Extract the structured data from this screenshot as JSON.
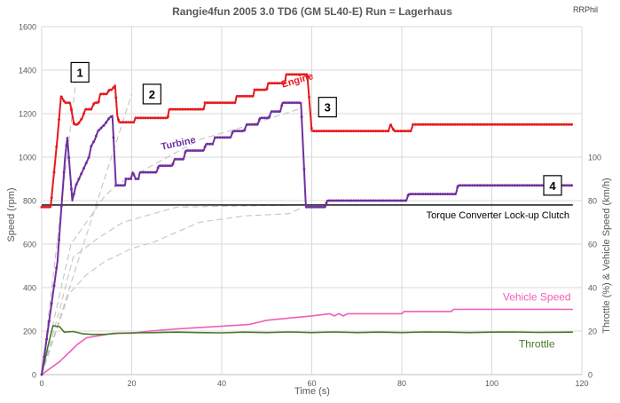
{
  "chart_data": {
    "type": "line",
    "title": "Rangie4fun   2005 3.0 TD6  (GM 5L40-E)   Run = Lagerhaus",
    "credit": "RRPhil",
    "xlabel": "Time (s)",
    "ylabel": "Speed (rpm)",
    "y2label": "Throttle (%) & Vehicle Speed (km/h)",
    "xlim": [
      0,
      120
    ],
    "ylim": [
      0,
      1600
    ],
    "y2lim": [
      0,
      160
    ],
    "x_ticks": [
      0,
      20,
      40,
      60,
      80,
      100,
      120
    ],
    "y_ticks": [
      0,
      200,
      400,
      600,
      800,
      1000,
      1200,
      1400,
      1600
    ],
    "y2_ticks": [
      0,
      20,
      40,
      60,
      80,
      100
    ],
    "grid": true,
    "series": [
      {
        "name": "Engine",
        "color": "#e8191c",
        "axis": "left",
        "marker": true,
        "points": [
          [
            0,
            770
          ],
          [
            2,
            770
          ],
          [
            3.5,
            1090
          ],
          [
            4.3,
            1280
          ],
          [
            5.2,
            1250
          ],
          [
            6.3,
            1250
          ],
          [
            7.2,
            1150
          ],
          [
            8,
            1150
          ],
          [
            9,
            1180
          ],
          [
            9.7,
            1220
          ],
          [
            11,
            1220
          ],
          [
            11.7,
            1250
          ],
          [
            12.6,
            1250
          ],
          [
            13,
            1290
          ],
          [
            14.5,
            1290
          ],
          [
            15,
            1310
          ],
          [
            15.6,
            1310
          ],
          [
            16.3,
            1330
          ],
          [
            16.8,
            1190
          ],
          [
            17.2,
            1160
          ],
          [
            20.5,
            1160
          ],
          [
            20.8,
            1180
          ],
          [
            28,
            1180
          ],
          [
            28.3,
            1220
          ],
          [
            36,
            1220
          ],
          [
            36.3,
            1250
          ],
          [
            43,
            1250
          ],
          [
            43.3,
            1280
          ],
          [
            47,
            1280
          ],
          [
            47.3,
            1310
          ],
          [
            50,
            1310
          ],
          [
            50.3,
            1340
          ],
          [
            54,
            1340
          ],
          [
            54.3,
            1380
          ],
          [
            59,
            1380
          ],
          [
            60,
            1120
          ],
          [
            77,
            1120
          ],
          [
            77.5,
            1150
          ],
          [
            78.3,
            1120
          ],
          [
            82,
            1120
          ],
          [
            82.5,
            1150
          ],
          [
            118,
            1150
          ]
        ]
      },
      {
        "name": "Turbine",
        "color": "#7030a0",
        "axis": "left",
        "marker": true,
        "points": [
          [
            0,
            0
          ],
          [
            3.5,
            520
          ],
          [
            5.2,
            1000
          ],
          [
            5.7,
            1090
          ],
          [
            6.8,
            800
          ],
          [
            7.6,
            870
          ],
          [
            10.5,
            1000
          ],
          [
            11,
            1050
          ],
          [
            11.8,
            1080
          ],
          [
            12.5,
            1120
          ],
          [
            13,
            1130
          ],
          [
            14,
            1150
          ],
          [
            15,
            1180
          ],
          [
            15.7,
            1190
          ],
          [
            16.5,
            870
          ],
          [
            18.5,
            870
          ],
          [
            18.7,
            900
          ],
          [
            19.8,
            900
          ],
          [
            20.2,
            930
          ],
          [
            20.9,
            900
          ],
          [
            21.5,
            900
          ],
          [
            21.8,
            930
          ],
          [
            25.5,
            930
          ],
          [
            26,
            960
          ],
          [
            29,
            960
          ],
          [
            29.5,
            990
          ],
          [
            31.5,
            990
          ],
          [
            32,
            1030
          ],
          [
            36,
            1030
          ],
          [
            36.5,
            1060
          ],
          [
            38,
            1060
          ],
          [
            38.5,
            1090
          ],
          [
            42,
            1090
          ],
          [
            42.5,
            1120
          ],
          [
            45,
            1120
          ],
          [
            45.5,
            1150
          ],
          [
            48,
            1150
          ],
          [
            48.5,
            1180
          ],
          [
            50.5,
            1180
          ],
          [
            51,
            1210
          ],
          [
            53,
            1210
          ],
          [
            53.5,
            1250
          ],
          [
            57.6,
            1250
          ],
          [
            58.7,
            770
          ],
          [
            63,
            770
          ],
          [
            63.4,
            800
          ],
          [
            81,
            800
          ],
          [
            81.5,
            830
          ],
          [
            92,
            830
          ],
          [
            92.5,
            870
          ],
          [
            118,
            870
          ]
        ]
      },
      {
        "name": "Vehicle Speed",
        "color": "#ee5fb8",
        "axis": "right",
        "marker": false,
        "points": [
          [
            0,
            0
          ],
          [
            4,
            6
          ],
          [
            6,
            10
          ],
          [
            8,
            14
          ],
          [
            10,
            17
          ],
          [
            13,
            18
          ],
          [
            16,
            19
          ],
          [
            20,
            19
          ],
          [
            24,
            20
          ],
          [
            30,
            21
          ],
          [
            38,
            22
          ],
          [
            46,
            23
          ],
          [
            50,
            25
          ],
          [
            55,
            26
          ],
          [
            60,
            27
          ],
          [
            64,
            28
          ],
          [
            65,
            27
          ],
          [
            66,
            28
          ],
          [
            67,
            27
          ],
          [
            68,
            28
          ],
          [
            80,
            28
          ],
          [
            80.5,
            29
          ],
          [
            91,
            29
          ],
          [
            91.5,
            30
          ],
          [
            118,
            30
          ]
        ]
      },
      {
        "name": "Throttle",
        "color": "#4a7a2a",
        "axis": "right",
        "marker": false,
        "points": [
          [
            0,
            0
          ],
          [
            1.5,
            14
          ],
          [
            2.5,
            22.5
          ],
          [
            4,
            22
          ],
          [
            5,
            19.5
          ],
          [
            7,
            19.8
          ],
          [
            9,
            18.8
          ],
          [
            11,
            18.5
          ],
          [
            14,
            18.5
          ],
          [
            17,
            19
          ],
          [
            20,
            19.2
          ],
          [
            25,
            19.3
          ],
          [
            30,
            19.5
          ],
          [
            35,
            19.3
          ],
          [
            40,
            19.2
          ],
          [
            45,
            19.5
          ],
          [
            50,
            19.3
          ],
          [
            55,
            19.6
          ],
          [
            60,
            19.3
          ],
          [
            65,
            19.6
          ],
          [
            70,
            19.3
          ],
          [
            75,
            19.5
          ],
          [
            80,
            19.3
          ],
          [
            85,
            19.6
          ],
          [
            90,
            19.5
          ],
          [
            95,
            19.3
          ],
          [
            100,
            19.5
          ],
          [
            105,
            19.6
          ],
          [
            110,
            19.4
          ],
          [
            118,
            19.5
          ]
        ]
      }
    ],
    "ratio_lines": [
      {
        "points": [
          [
            0,
            0
          ],
          [
            8,
            1420
          ]
        ]
      },
      {
        "points": [
          [
            0,
            0
          ],
          [
            20,
            1290
          ]
        ]
      },
      {
        "points": [
          [
            0,
            0
          ],
          [
            6.5,
            600
          ],
          [
            14,
            820
          ],
          [
            16.5,
            870
          ],
          [
            35,
            1080
          ],
          [
            45,
            1140
          ],
          [
            57,
            1220
          ]
        ]
      },
      {
        "points": [
          [
            0,
            0
          ],
          [
            4,
            300
          ],
          [
            7,
            540
          ],
          [
            12,
            620
          ],
          [
            18,
            700
          ],
          [
            30,
            770
          ],
          [
            58,
            780
          ]
        ]
      },
      {
        "points": [
          [
            0,
            0
          ],
          [
            6,
            370
          ],
          [
            10,
            460
          ],
          [
            14,
            520
          ],
          [
            20,
            580
          ],
          [
            25,
            610
          ],
          [
            35,
            700
          ],
          [
            45,
            730
          ],
          [
            55,
            740
          ],
          [
            58,
            770
          ]
        ]
      }
    ],
    "reference_line": {
      "label": "Torque Converter Lock-up Clutch",
      "y": 780
    },
    "annotations": [
      {
        "label": "1",
        "x": 8.5,
        "y": 1390
      },
      {
        "label": "2",
        "x": 24.5,
        "y": 1290
      },
      {
        "label": "3",
        "x": 63.5,
        "y": 1230
      },
      {
        "label": "4",
        "x": 113.5,
        "y": 870
      }
    ],
    "series_labels": [
      {
        "text": "Engine",
        "series": "Engine",
        "x": 57,
        "y": 1340,
        "rotate": -16
      },
      {
        "text": "Turbine",
        "series": "Turbine",
        "x": 30.5,
        "y": 1050,
        "rotate": -12
      },
      {
        "text": "Vehicle Speed",
        "series": "Vehicle Speed",
        "x": 110,
        "y": 34,
        "rotate": 0
      },
      {
        "text": "Throttle",
        "series": "Throttle",
        "x": 110,
        "y": 12.5,
        "rotate": 0
      }
    ]
  }
}
